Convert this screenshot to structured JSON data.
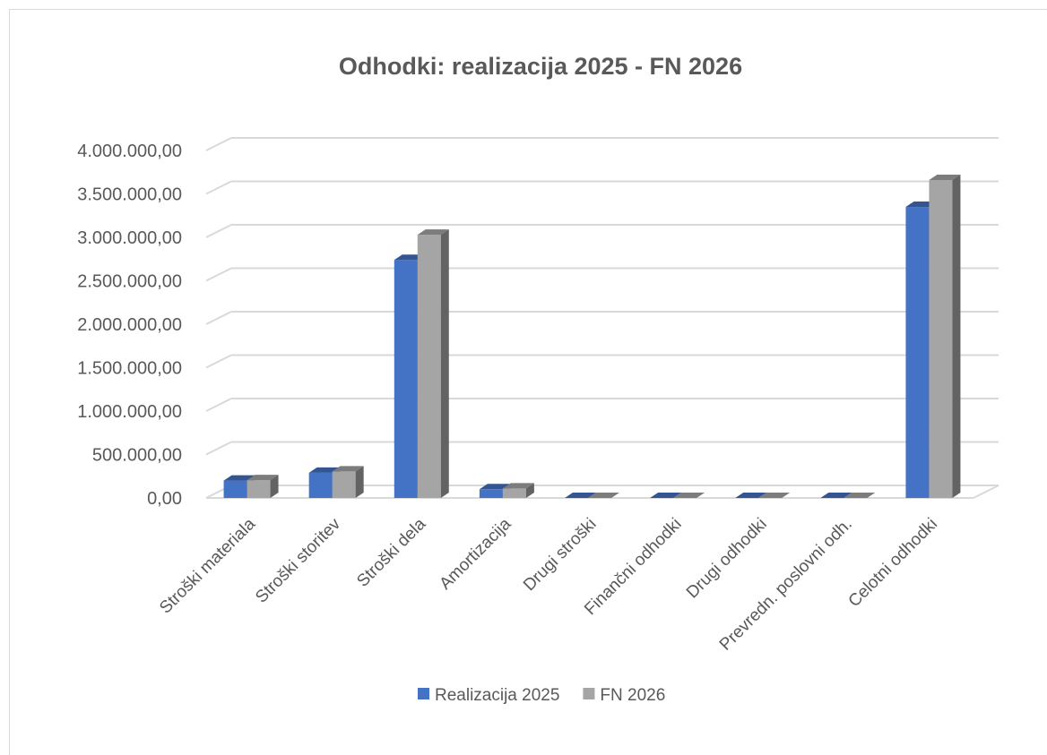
{
  "chart_data": {
    "type": "bar",
    "title": "Odhodki: realizacija 2025 - FN 2026",
    "xlabel": "",
    "ylabel": "",
    "categories": [
      "Stroški materiala",
      "Stroški storitev",
      "Stroški dela",
      "Amortizacija",
      "Drugi stroški",
      "Finančni odhodki",
      "Drugi odhodki",
      "Prevredn. poslovni odh.",
      "Celotni odhodki"
    ],
    "series": [
      {
        "name": "Realizacija 2025",
        "color": "#4472c4",
        "values": [
          200000,
          290000,
          2740000,
          100000,
          0,
          0,
          0,
          0,
          3350000
        ]
      },
      {
        "name": "FN 2026",
        "color": "#a5a5a5",
        "values": [
          205000,
          305000,
          3030000,
          110000,
          0,
          0,
          0,
          0,
          3660000
        ]
      }
    ],
    "ylim": [
      0,
      4000000
    ],
    "yticks": [
      "0,00",
      "500.000,00",
      "1.000.000,00",
      "1.500.000,00",
      "2.000.000,00",
      "2.500.000,00",
      "3.000.000,00",
      "3.500.000,00",
      "4.000.000,00"
    ],
    "grid": true,
    "legend_position": "bottom"
  }
}
